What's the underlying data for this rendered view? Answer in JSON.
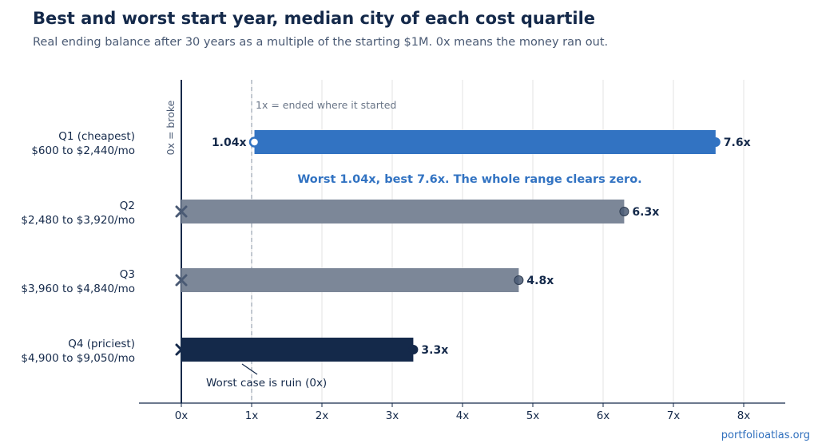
{
  "title": "Best and worst start year, median city of each cost quartile",
  "subtitle": "Real ending balance after 30 years as a multiple of the starting $1M. 0x means the money ran out.",
  "source": "portfolioatlas.org",
  "chart_data": {
    "type": "bar",
    "orientation": "horizontal-range",
    "xlim": [
      -0.6,
      8.6
    ],
    "xticks": [
      0,
      1,
      2,
      3,
      4,
      5,
      6,
      7,
      8
    ],
    "xtick_labels": [
      "0x",
      "1x",
      "2x",
      "3x",
      "4x",
      "5x",
      "6x",
      "7x",
      "8x"
    ],
    "grid": "vertical",
    "zero_line_label": "0x = broke",
    "reference_line": {
      "x": 1,
      "label": "1x = ended where it started"
    },
    "categories": [
      {
        "name": "Q1 (cheapest)",
        "range": "$600 to $2,440/mo",
        "worst": 1.04,
        "best": 7.6,
        "worst_label": "1.04x",
        "best_label": "7.6x",
        "worst_marker": "circle",
        "color": "#3273c2",
        "best_marker_color": "#3273c2"
      },
      {
        "name": "Q2",
        "range": "$2,480 to $3,920/mo",
        "worst": 0,
        "best": 6.3,
        "worst_label": "",
        "best_label": "6.3x",
        "worst_marker": "x",
        "color": "#7c8798",
        "best_marker_color": "#4a5a74"
      },
      {
        "name": "Q3",
        "range": "$3,960 to $4,840/mo",
        "worst": 0,
        "best": 4.8,
        "worst_label": "",
        "best_label": "4.8x",
        "worst_marker": "x",
        "color": "#7c8798",
        "best_marker_color": "#4a5a74"
      },
      {
        "name": "Q4 (priciest)",
        "range": "$4,900 to $9,050/mo",
        "worst": 0,
        "best": 3.3,
        "worst_label": "",
        "best_label": "3.3x",
        "worst_marker": "x",
        "color": "#14294a",
        "best_marker_color": "#14294a"
      }
    ],
    "annotations": [
      {
        "text": "Worst 1.04x, best 7.6x. The whole range clears zero.",
        "color": "#3273c2"
      },
      {
        "text": "Worst case is ruin (0x)",
        "color": "#14294a"
      }
    ],
    "colors": {
      "axis": "#14294a",
      "tick_text": "#14294a",
      "grid": "#e3e3e3",
      "reference": "#9aa3b0"
    }
  }
}
